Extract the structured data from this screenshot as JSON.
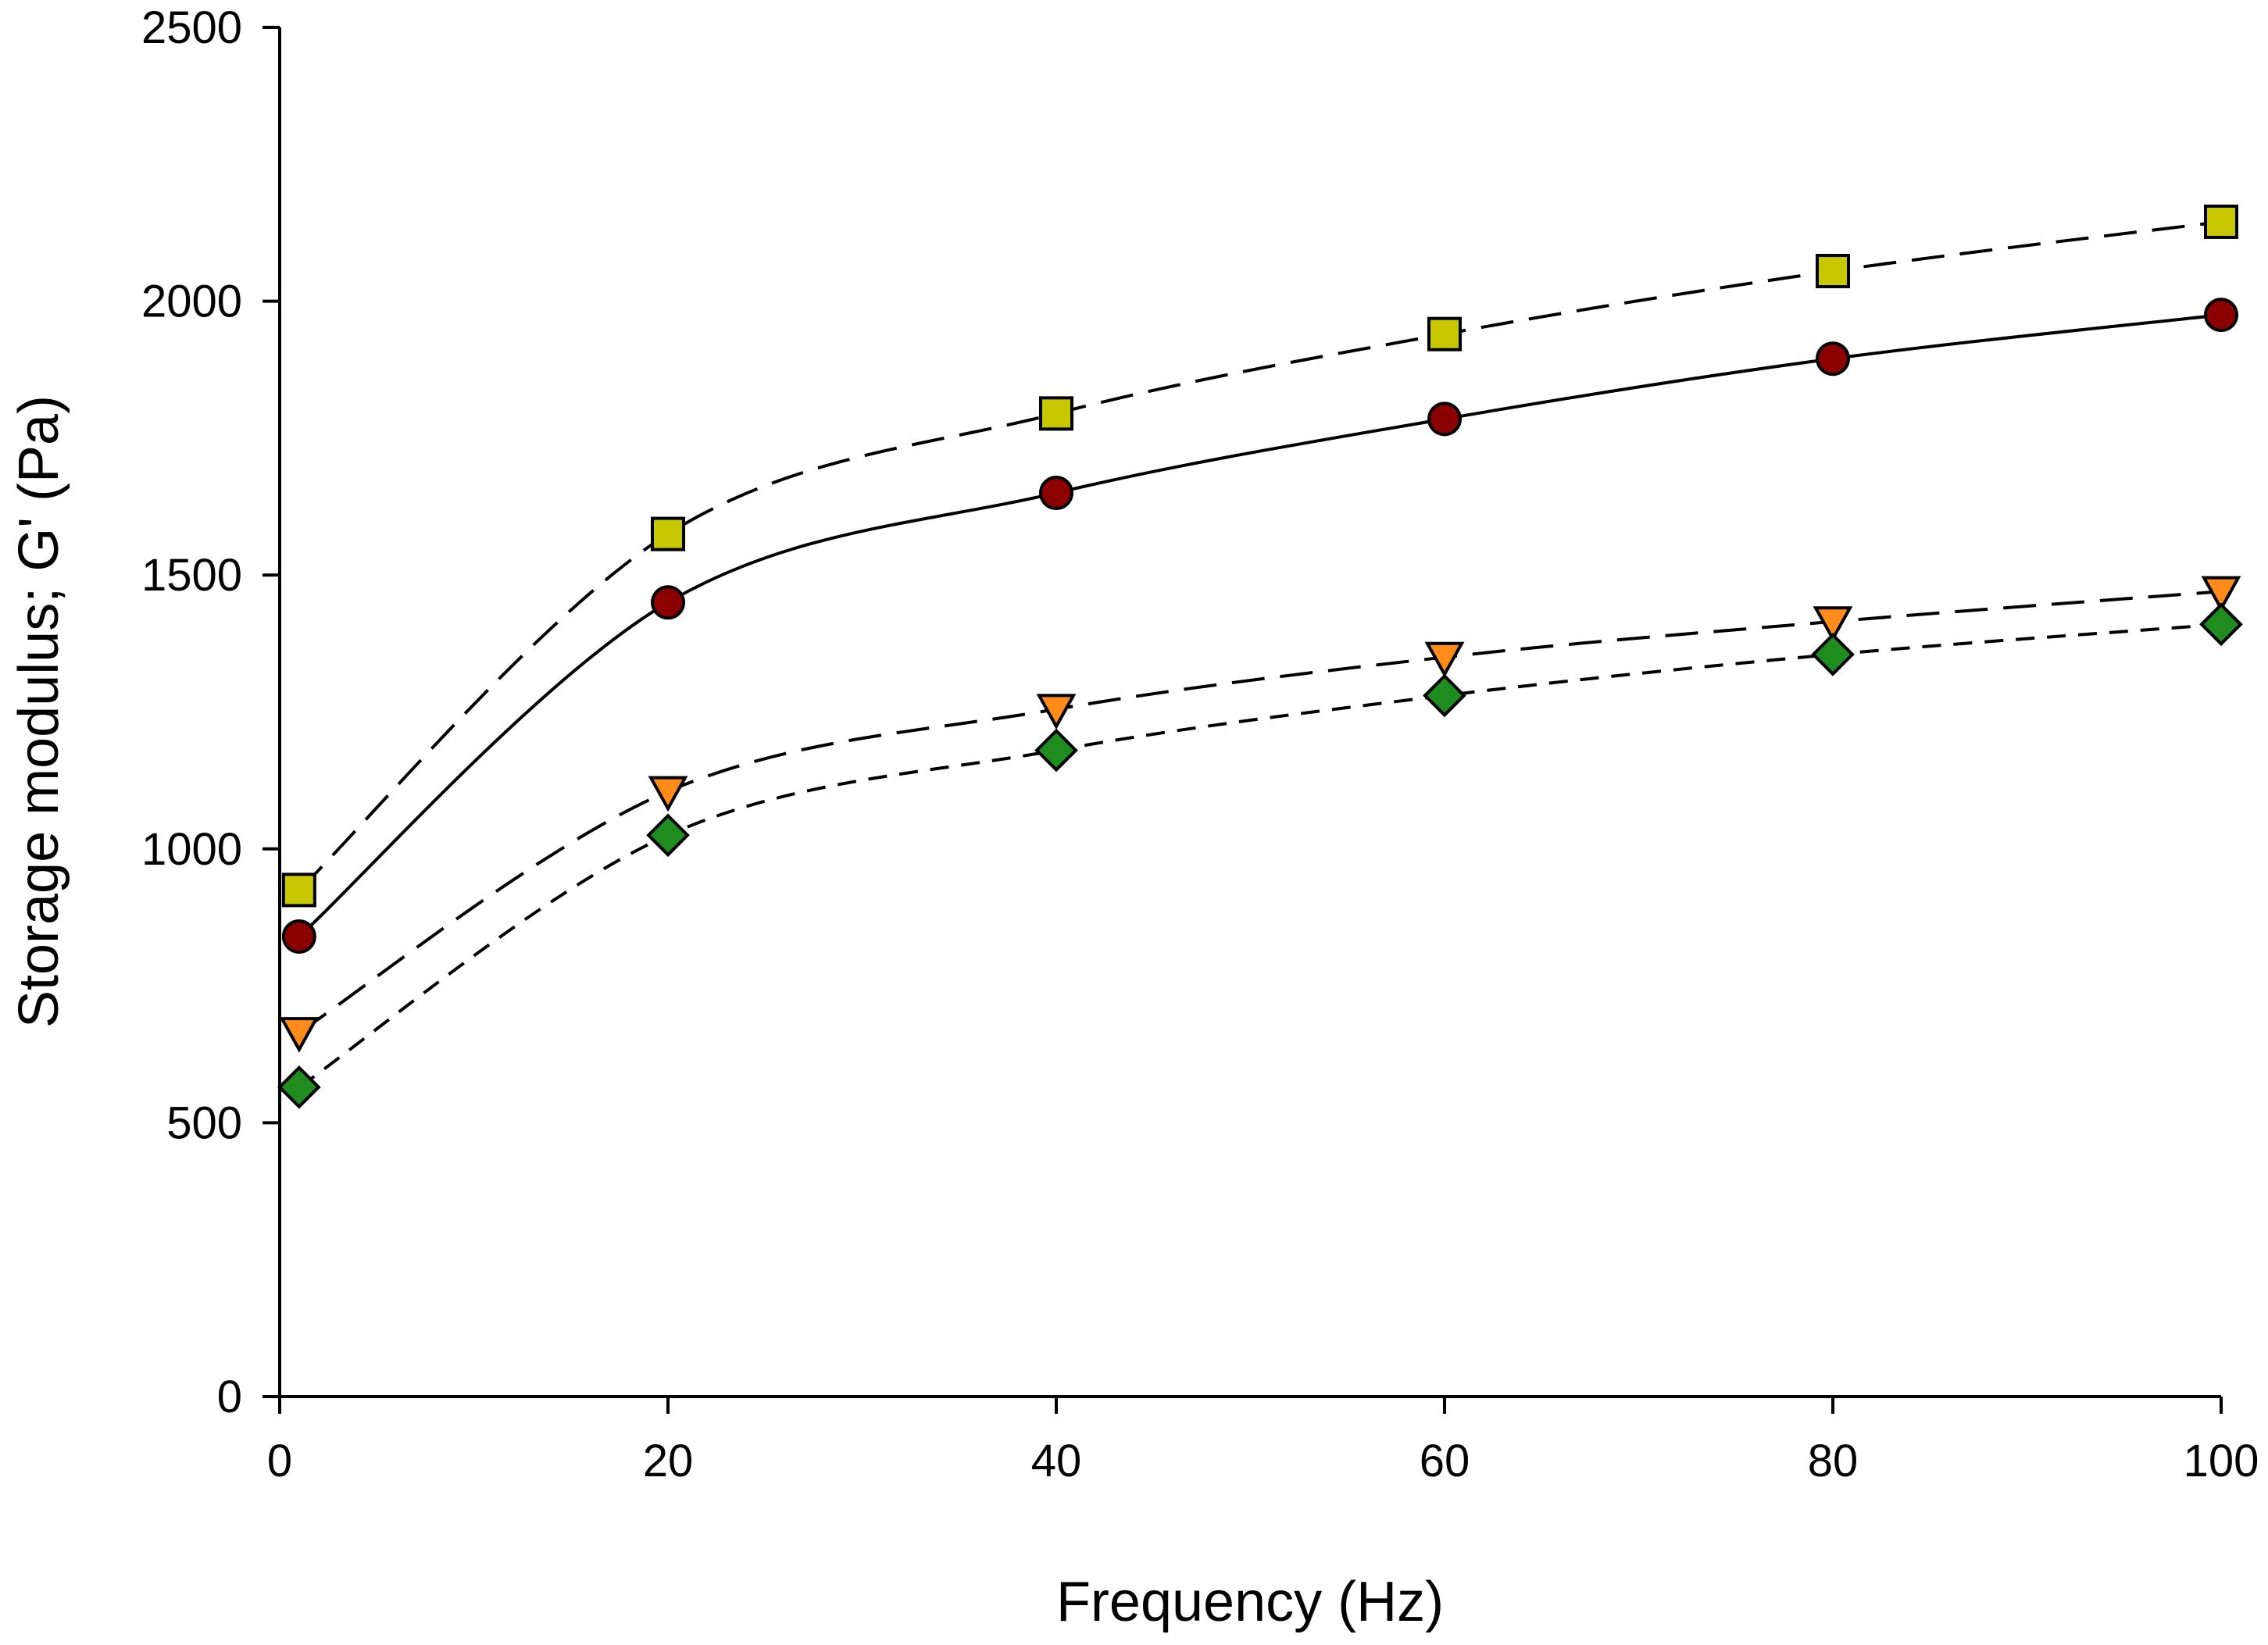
{
  "chart_data": {
    "type": "line",
    "title": "",
    "xlabel": "Frequency (Hz)",
    "ylabel": "Storage modulus; G' (Pa)",
    "xlim": [
      0,
      100
    ],
    "ylim": [
      0,
      2500
    ],
    "xticks": [
      0,
      20,
      40,
      60,
      80,
      100
    ],
    "yticks": [
      0,
      500,
      1000,
      1500,
      2000,
      2500
    ],
    "x": [
      1,
      20,
      40,
      60,
      80,
      100
    ],
    "grid": false,
    "legend": "none",
    "series": [
      {
        "name": "square-series",
        "marker": "square",
        "line": "long-dash",
        "color": "#c8c800",
        "values": [
          925,
          1575,
          1795,
          1940,
          2055,
          2145
        ]
      },
      {
        "name": "circle-series",
        "marker": "circle",
        "line": "solid",
        "color": "#8b0000",
        "values": [
          840,
          1450,
          1650,
          1785,
          1895,
          1975
        ]
      },
      {
        "name": "triangle-series",
        "marker": "triangle-down",
        "line": "long-dash",
        "color": "#ff8c1a",
        "values": [
          665,
          1105,
          1255,
          1350,
          1415,
          1470
        ]
      },
      {
        "name": "diamond-series",
        "marker": "diamond",
        "line": "short-dash",
        "color": "#1e8c1e",
        "values": [
          565,
          1025,
          1180,
          1280,
          1355,
          1410
        ]
      }
    ]
  }
}
